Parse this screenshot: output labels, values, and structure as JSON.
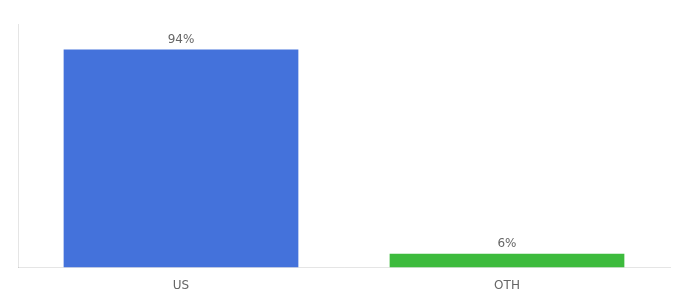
{
  "chart_data": {
    "type": "bar",
    "categories": [
      "US",
      "OTH"
    ],
    "values": [
      94,
      6
    ],
    "value_labels": [
      "94%",
      "6%"
    ],
    "colors": [
      "#4472db",
      "#3dbb3d"
    ],
    "ylim": [
      0,
      105
    ],
    "data_labels": true,
    "tick_labels": "x",
    "grid": false
  }
}
